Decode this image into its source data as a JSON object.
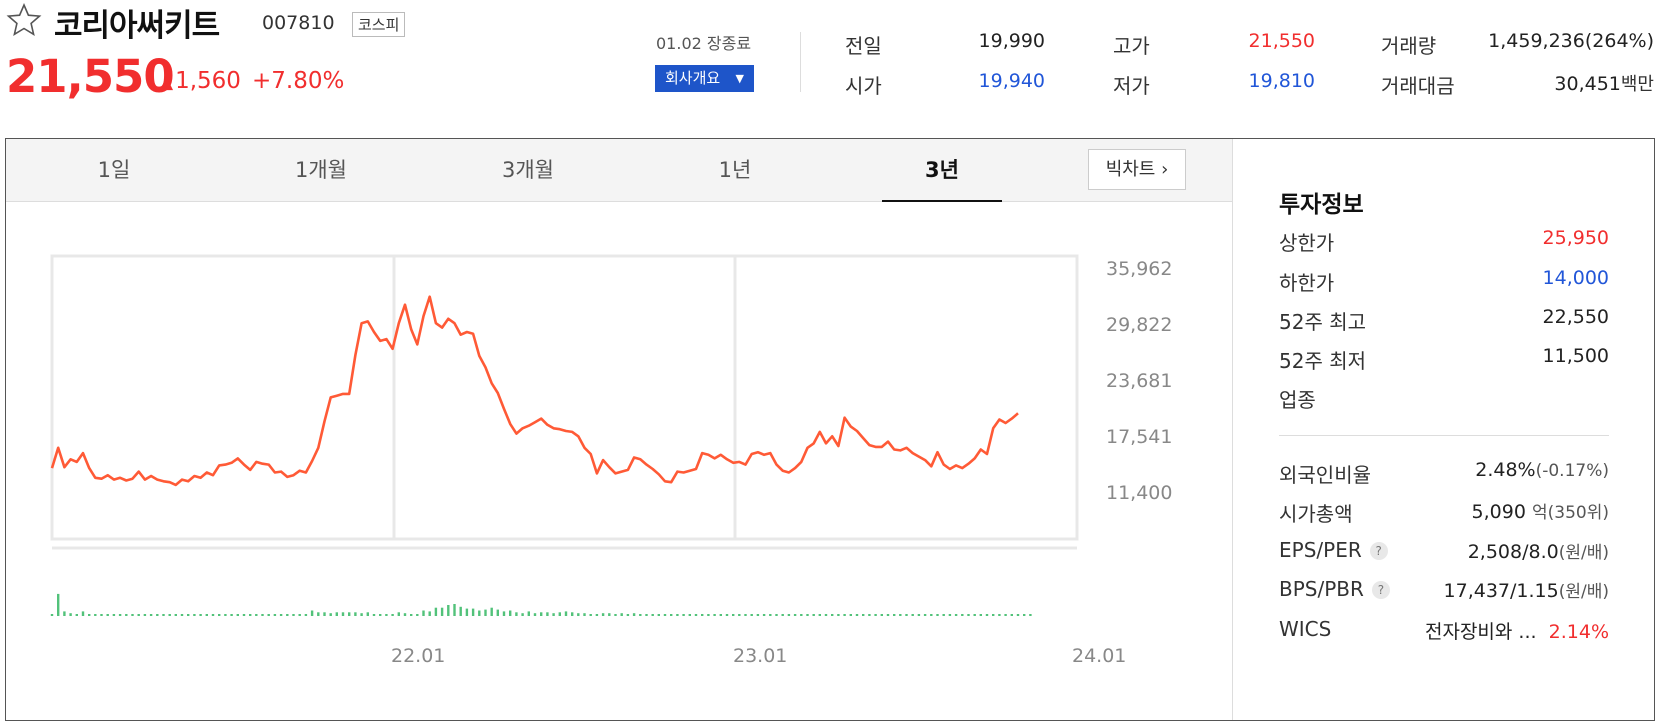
{
  "header": {
    "favorite_icon": "star-outline-icon",
    "name": "코리아써키트",
    "code": "007810",
    "market": "코스피",
    "price": "21,550",
    "change_icon": "triangle-up-icon",
    "change": "1,560",
    "change_rate": "+7.80%",
    "session": "01.02 장종료",
    "company_button": "회사개요",
    "caret_icon": "caret-down-icon",
    "colors": {
      "up": "#f12e2e",
      "down": "#2156d8",
      "button": "#1e55c9"
    }
  },
  "stats": {
    "prev_label": "전일",
    "prev": "19,990",
    "high_label": "고가",
    "high": "21,550",
    "volume_label": "거래량",
    "volume": "1,459,236(264%)",
    "open_label": "시가",
    "open": "19,940",
    "low_label": "저가",
    "low": "19,810",
    "amount_label": "거래대금",
    "amount": "30,451",
    "amount_unit": "백만"
  },
  "tabs": [
    "1일",
    "1개월",
    "3개월",
    "1년",
    "3년"
  ],
  "active_tab": "3년",
  "bigchart_label": "빅차트",
  "bigchart_icon": "chevron-right-icon",
  "chart_data": {
    "type": "line",
    "y_ticks": [
      "35,962",
      "29,822",
      "23,681",
      "17,541",
      "11,400"
    ],
    "ylim": [
      11400,
      35962
    ],
    "x_ticks": [
      "22.01",
      "23.01",
      "24.01"
    ],
    "line_color": "#ff5a36",
    "volume_color": "#52c27a",
    "grid": true,
    "series": [
      {
        "x": [
          0,
          1,
          2,
          3,
          4,
          5,
          6,
          7,
          8,
          9,
          10,
          11,
          12,
          13,
          14,
          15,
          16,
          17,
          18,
          19,
          20,
          21,
          22,
          23,
          24,
          25,
          26,
          27,
          28,
          29,
          30,
          31,
          32,
          33,
          34,
          35,
          36,
          37,
          38,
          39,
          40,
          41,
          42,
          43,
          44,
          45,
          46,
          47,
          48,
          49,
          50,
          51,
          52,
          53,
          54,
          55,
          56,
          57,
          58,
          59,
          60,
          61,
          62,
          63,
          64,
          65,
          66,
          67,
          68,
          69,
          70,
          71,
          72,
          73,
          74,
          75,
          76,
          77,
          78,
          79,
          80,
          81,
          82,
          83,
          84,
          85,
          86,
          87,
          88,
          89,
          90,
          91,
          92,
          93,
          94,
          95,
          96,
          97,
          98,
          99,
          100,
          101,
          102,
          103,
          104,
          105,
          106,
          107,
          108,
          109,
          110,
          111,
          112,
          113,
          114,
          115,
          116,
          117,
          118,
          119,
          120,
          121,
          122,
          123,
          124,
          125,
          126,
          127,
          128,
          129,
          130,
          131,
          132,
          133,
          134,
          135,
          136,
          137,
          138,
          139,
          140,
          141,
          142,
          143,
          144,
          145,
          146,
          147,
          148,
          149,
          150,
          151,
          152,
          153,
          154,
          155,
          156
        ],
        "values": [
          13200,
          15500,
          13300,
          14200,
          13900,
          14900,
          13200,
          12100,
          12000,
          12400,
          11900,
          12100,
          11800,
          12000,
          12800,
          11900,
          12300,
          11900,
          11700,
          11600,
          11300,
          11900,
          11700,
          12300,
          12100,
          12700,
          12400,
          13500,
          13600,
          13800,
          14300,
          13600,
          13000,
          13900,
          13700,
          13600,
          12700,
          12800,
          12200,
          12400,
          12900,
          12700,
          14000,
          15500,
          18500,
          21200,
          21400,
          21600,
          21600,
          26000,
          29600,
          29800,
          28600,
          27600,
          27800,
          26700,
          29600,
          31700,
          28900,
          27200,
          30400,
          32600,
          29600,
          29100,
          30100,
          29600,
          28300,
          28600,
          28400,
          25900,
          24600,
          22800,
          21700,
          19900,
          18200,
          17100,
          17700,
          18000,
          18400,
          18800,
          18100,
          17700,
          17600,
          17400,
          17300,
          16800,
          15500,
          14800,
          12600,
          14100,
          13300,
          12600,
          12800,
          13000,
          14400,
          14200,
          13600,
          13100,
          12500,
          11700,
          11600,
          12800,
          12700,
          12900,
          13100,
          14900,
          14700,
          14300,
          14700,
          14200,
          13800,
          13900,
          13600,
          14800,
          15000,
          14700,
          14900,
          13600,
          12900,
          12700,
          13200,
          13900,
          15500,
          16000,
          17300,
          16000,
          16800,
          15700,
          18900,
          17900,
          17400,
          16600,
          15800,
          15600,
          15600,
          16200,
          15300,
          15200,
          15500,
          14900,
          14500,
          14100,
          13400,
          15000,
          13600,
          13100,
          13500,
          13200,
          13700,
          14300,
          15300,
          14800,
          17700,
          18700,
          18300,
          18800,
          19400
        ]
      }
    ],
    "volume": [
      0.02,
      0.24,
      0.05,
      0.03,
      0.02,
      0.05,
      0.02,
      0.02,
      0.02,
      0.01,
      0.01,
      0.01,
      0.02,
      0.02,
      0.02,
      0.01,
      0.02,
      0.01,
      0.02,
      0.01,
      0.01,
      0.02,
      0.02,
      0.02,
      0.02,
      0.02,
      0.02,
      0.02,
      0.02,
      0.02,
      0.02,
      0.02,
      0.02,
      0.02,
      0.02,
      0.02,
      0.02,
      0.02,
      0.02,
      0.02,
      0.02,
      0.02,
      0.06,
      0.04,
      0.04,
      0.03,
      0.04,
      0.04,
      0.04,
      0.04,
      0.03,
      0.04,
      0.02,
      0.02,
      0.02,
      0.02,
      0.04,
      0.03,
      0.02,
      0.02,
      0.06,
      0.05,
      0.09,
      0.09,
      0.12,
      0.13,
      0.1,
      0.08,
      0.08,
      0.06,
      0.07,
      0.09,
      0.07,
      0.05,
      0.06,
      0.04,
      0.03,
      0.05,
      0.03,
      0.04,
      0.04,
      0.03,
      0.04,
      0.05,
      0.04,
      0.03,
      0.03,
      0.02,
      0.02,
      0.03,
      0.03,
      0.02,
      0.03,
      0.02,
      0.03,
      0.02,
      0.02,
      0.02,
      0.01,
      0.02,
      0.02,
      0.02,
      0.02,
      0.02,
      0.02,
      0.02,
      0.02,
      0.02,
      0.02,
      0.02,
      0.02,
      0.02,
      0.02,
      0.02,
      0.02,
      0.02,
      0.02,
      0.02,
      0.02,
      0.02,
      0.02,
      0.02,
      0.02,
      0.02,
      0.02,
      0.02,
      0.02,
      0.02,
      0.02,
      0.02,
      0.02,
      0.02,
      0.02,
      0.02,
      0.02,
      0.02,
      0.02,
      0.02,
      0.02,
      0.02,
      0.02,
      0.02,
      0.02,
      0.02,
      0.02,
      0.02,
      0.02,
      0.02,
      0.02,
      0.02,
      0.02,
      0.02,
      0.02,
      0.02,
      0.02,
      0.02,
      0.02,
      0.02,
      0.02
    ]
  },
  "invest": {
    "title": "투자정보",
    "upper_label": "상한가",
    "upper": "25,950",
    "lower_label": "하한가",
    "lower": "14,000",
    "high52_label": "52주 최고",
    "high52": "22,550",
    "low52_label": "52주 최저",
    "low52": "11,500",
    "sector_label": "업종",
    "foreign_label": "외국인비율",
    "foreign": "2.48%",
    "foreign_chg": "(-0.17%)",
    "mcap_label": "시가총액",
    "mcap": "5,090",
    "mcap_unit": "억(350위)",
    "eps_label": "EPS/PER",
    "eps": "2,508/8.0",
    "eps_unit": "(원/배)",
    "bps_label": "BPS/PBR",
    "bps": "17,437/1.15",
    "bps_unit": "(원/배)",
    "help_icon": "question-circle-icon",
    "wics_label": "WICS",
    "wics": "전자장비와 ...",
    "wics_rate": "2.14%"
  }
}
